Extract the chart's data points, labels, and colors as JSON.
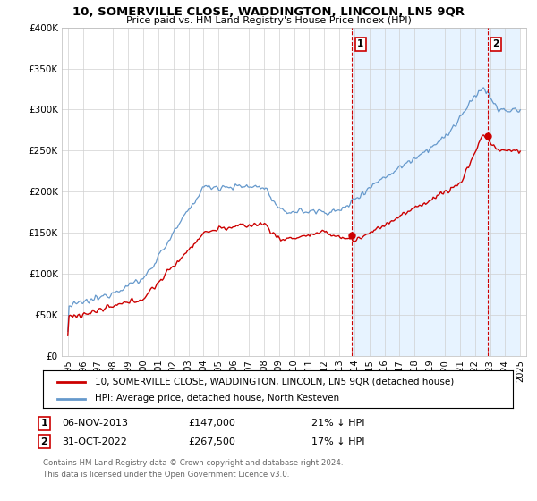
{
  "title": "10, SOMERVILLE CLOSE, WADDINGTON, LINCOLN, LN5 9QR",
  "subtitle": "Price paid vs. HM Land Registry's House Price Index (HPI)",
  "ylim": [
    0,
    400000
  ],
  "yticks": [
    0,
    50000,
    100000,
    150000,
    200000,
    250000,
    300000,
    350000,
    400000
  ],
  "ytick_labels": [
    "£0",
    "£50K",
    "£100K",
    "£150K",
    "£200K",
    "£250K",
    "£300K",
    "£350K",
    "£400K"
  ],
  "background_color": "#ffffff",
  "grid_color": "#d0d0d0",
  "sale1_year": 2013.84,
  "sale1_price": 147000,
  "sale2_year": 2022.83,
  "sale2_price": 267500,
  "legend_line1": "10, SOMERVILLE CLOSE, WADDINGTON, LINCOLN, LN5 9QR (detached house)",
  "legend_line2": "HPI: Average price, detached house, North Kesteven",
  "footer1": "Contains HM Land Registry data © Crown copyright and database right 2024.",
  "footer2": "This data is licensed under the Open Government Licence v3.0.",
  "ann1_date": "06-NOV-2013",
  "ann1_price": "£147,000",
  "ann1_pct": "21% ↓ HPI",
  "ann2_date": "31-OCT-2022",
  "ann2_price": "£267,500",
  "ann2_pct": "17% ↓ HPI",
  "house_line_color": "#cc0000",
  "hpi_line_color": "#6699cc",
  "hpi_fill_color": "#ddeeff",
  "vline_color": "#cc0000"
}
